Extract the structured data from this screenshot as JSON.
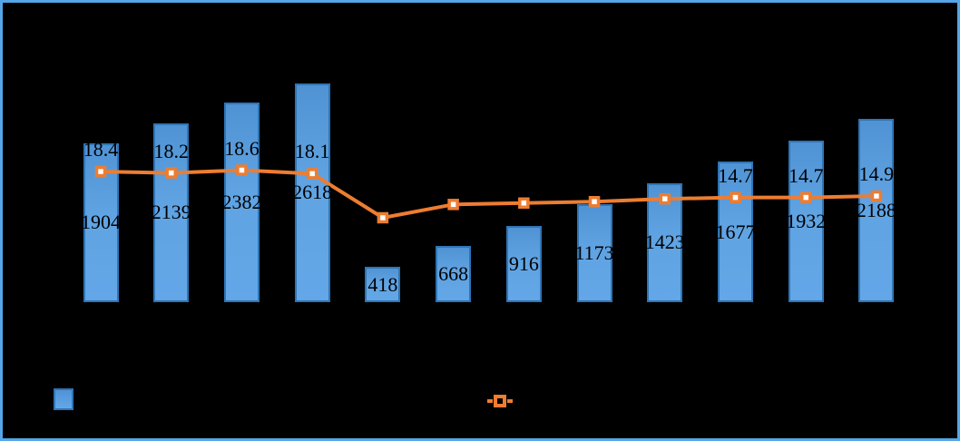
{
  "window": {
    "background_color": "#000000",
    "frame_border_color": "#55A6E8"
  },
  "chart_data": {
    "type": "combo",
    "title": "",
    "categories": [
      "",
      "",
      "",
      "",
      "",
      "",
      "",
      "",
      "",
      "",
      "",
      ""
    ],
    "gridlines": false,
    "axes_labels_visible": false,
    "legend_position": "bottom",
    "primary_axis_range": [
      0,
      3000
    ],
    "secondary_axis_range": [
      0,
      40
    ],
    "series": [
      {
        "name": "bar-series",
        "type": "bar",
        "color": "#5B9BD5",
        "border_color": "#2E75B6",
        "values": [
          1904,
          2139,
          2382,
          2618,
          418,
          668,
          916,
          1173,
          1423,
          1677,
          1932,
          2188
        ],
        "labels": [
          "1904",
          "2139",
          "2382",
          "2618",
          "418",
          "668",
          "916",
          "1173",
          "1423",
          "1677",
          "1932",
          "2188"
        ],
        "label_position": "center"
      },
      {
        "name": "line-series",
        "type": "line",
        "color": "#ED7D31",
        "marker": "square-white-fill",
        "values": [
          18.4,
          18.2,
          18.6,
          18.1,
          11.8,
          13.7,
          13.9,
          14.1,
          14.5,
          14.7,
          14.7,
          14.9
        ],
        "labels": [
          "18.4",
          "18.2",
          "18.6",
          "18.1",
          "",
          "",
          "",
          "",
          "",
          "14.7",
          "14.7",
          "14.9"
        ],
        "label_position": "above"
      }
    ]
  },
  "legend": {
    "items": [
      {
        "series": "bar-series",
        "swatch": "blue-square",
        "swatch_color": "#5B9BD5",
        "label": ""
      },
      {
        "series": "line-series",
        "swatch": "orange-line-with-square-marker",
        "swatch_color": "#ED7D31",
        "label": ""
      }
    ]
  },
  "colors": {
    "bar_fill": "#5B9BD5",
    "bar_border": "#2E75B6",
    "line": "#ED7D31",
    "marker_fill": "#FFFFFF",
    "data_label_text": "#000000"
  }
}
